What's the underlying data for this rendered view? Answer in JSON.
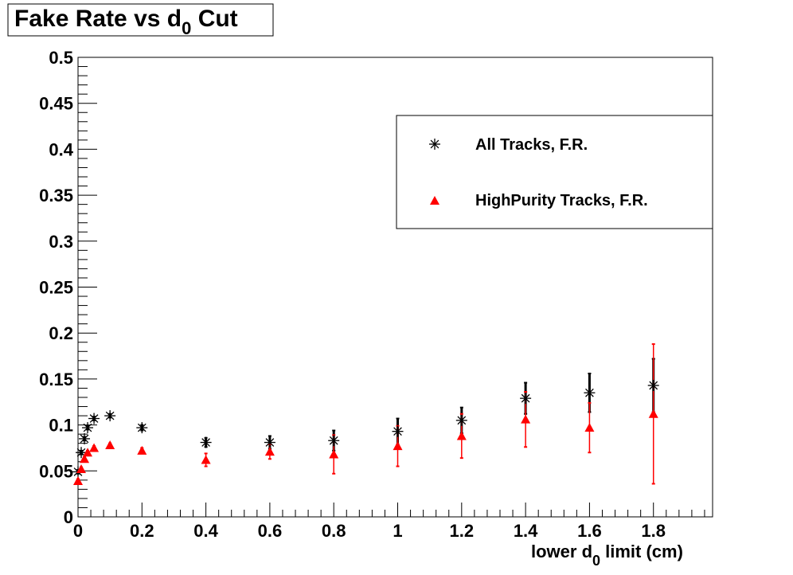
{
  "chart_data": {
    "type": "scatter",
    "title": "Fake Rate vs d0 Cut",
    "title_main": "Fake Rate vs d",
    "title_sub": "0",
    "title_tail": " Cut",
    "xlabel": "lower d0 limit (cm)",
    "xlabel_main": "lower d",
    "xlabel_sub": "0",
    "xlabel_tail": " limit (cm)",
    "ylabel": "",
    "xlim": [
      0,
      1.985
    ],
    "ylim": [
      0,
      0.5
    ],
    "xticks": [
      "0",
      "0.2",
      "0.4",
      "0.6",
      "0.8",
      "1",
      "1.2",
      "1.4",
      "1.6",
      "1.8"
    ],
    "yticks": [
      "0",
      "0.05",
      "0.1",
      "0.15",
      "0.2",
      "0.25",
      "0.3",
      "0.35",
      "0.4",
      "0.45",
      "0.5"
    ],
    "legend_position": "top-right",
    "series": [
      {
        "name": "All Tracks, F.R.",
        "color": "#000000",
        "marker": "star",
        "x": [
          0,
          0.01,
          0.02,
          0.03,
          0.05,
          0.1,
          0.2,
          0.4,
          0.6,
          0.8,
          1.0,
          1.2,
          1.4,
          1.6,
          1.8
        ],
        "y": [
          0.049,
          0.07,
          0.085,
          0.097,
          0.107,
          0.11,
          0.097,
          0.081,
          0.081,
          0.083,
          0.093,
          0.105,
          0.129,
          0.135,
          0.143
        ],
        "err": [
          0.002,
          0.002,
          0.002,
          0.002,
          0.002,
          0.002,
          0.003,
          0.005,
          0.007,
          0.011,
          0.014,
          0.014,
          0.017,
          0.021,
          0.029
        ]
      },
      {
        "name": "HighPurity Tracks, F.R.",
        "color": "#ff0000",
        "marker": "triangle",
        "x": [
          0,
          0.01,
          0.02,
          0.03,
          0.05,
          0.1,
          0.2,
          0.4,
          0.6,
          0.8,
          1.0,
          1.2,
          1.4,
          1.6,
          1.8
        ],
        "y": [
          0.039,
          0.052,
          0.063,
          0.07,
          0.075,
          0.078,
          0.072,
          0.062,
          0.071,
          0.068,
          0.077,
          0.088,
          0.106,
          0.097,
          0.112
        ],
        "err": [
          0.002,
          0.002,
          0.002,
          0.002,
          0.002,
          0.002,
          0.003,
          0.007,
          0.008,
          0.021,
          0.022,
          0.024,
          0.03,
          0.027,
          0.076
        ]
      }
    ]
  }
}
